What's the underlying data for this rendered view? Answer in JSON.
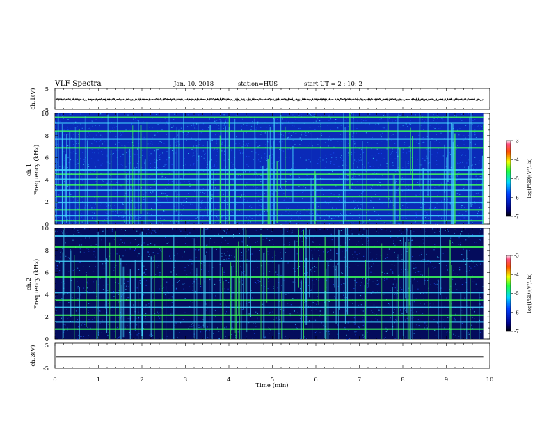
{
  "header": {
    "title": "VLF Spectra",
    "date": "Jan. 10, 2018",
    "station": "station=HUS",
    "start_ut": "start UT =  2 : 10: 2"
  },
  "colors": {
    "spec_background": "#0a1aa8",
    "line_green": "#3dff5a",
    "line_cyan": "#46d8ff",
    "waveform": "#000000"
  },
  "chart_data": [
    {
      "type": "line",
      "name": "ch1-waveform",
      "ylabel": "ch.1(V)",
      "ylim": [
        -5,
        5
      ],
      "yticks": [
        "5",
        "-5"
      ],
      "x_range_min": [
        0,
        9.85
      ],
      "level": -0.3,
      "amplitude": "small noise"
    },
    {
      "type": "heatmap",
      "name": "ch1-spectrogram",
      "ylabel_top": "ch.1",
      "ylabel": "Frequency (kHz)",
      "ylim": [
        0,
        10
      ],
      "yticks": [
        "0",
        "2",
        "4",
        "6",
        "8",
        "10"
      ],
      "x_range_min": [
        0,
        9.85
      ],
      "bands_khz": [
        0.3,
        0.75,
        1.3,
        1.95,
        2.5,
        3.05,
        3.55,
        4.05,
        4.5,
        4.9,
        6.9,
        7.7,
        8.4,
        9.15,
        9.65
      ],
      "colorbar": {
        "label": "log(PSD)(V²/Hz)",
        "range": [
          -7,
          -3
        ],
        "ticks": [
          "-3",
          "-4",
          "-5",
          "-6",
          "-7"
        ]
      }
    },
    {
      "type": "heatmap",
      "name": "ch2-spectrogram",
      "ylabel_top": "ch.2",
      "ylabel": "Frequency (kHz)",
      "ylim": [
        0,
        10
      ],
      "yticks": [
        "0",
        "2",
        "4",
        "6",
        "8",
        "10"
      ],
      "x_range_min": [
        0,
        9.85
      ],
      "bands_khz": [
        0.9,
        1.55,
        2.15,
        2.85,
        3.5,
        4.2,
        5.6,
        7.0,
        8.3,
        9.3
      ],
      "colorbar": {
        "label": "log(PSD)(V²/Hz)",
        "range": [
          -7,
          -3
        ],
        "ticks": [
          "-3",
          "-4",
          "-5",
          "-6",
          "-7"
        ]
      }
    },
    {
      "type": "line",
      "name": "ch3-waveform",
      "ylabel": "ch.3(V)",
      "ylim": [
        -5,
        5
      ],
      "yticks": [
        "5",
        "-5"
      ],
      "x_range_min": [
        0,
        9.85
      ],
      "level": -0.5
    }
  ],
  "xaxis": {
    "label": "Time (min)",
    "range": [
      0,
      10
    ],
    "ticks": [
      "0",
      "1",
      "2",
      "3",
      "4",
      "5",
      "6",
      "7",
      "8",
      "9",
      "10"
    ]
  }
}
